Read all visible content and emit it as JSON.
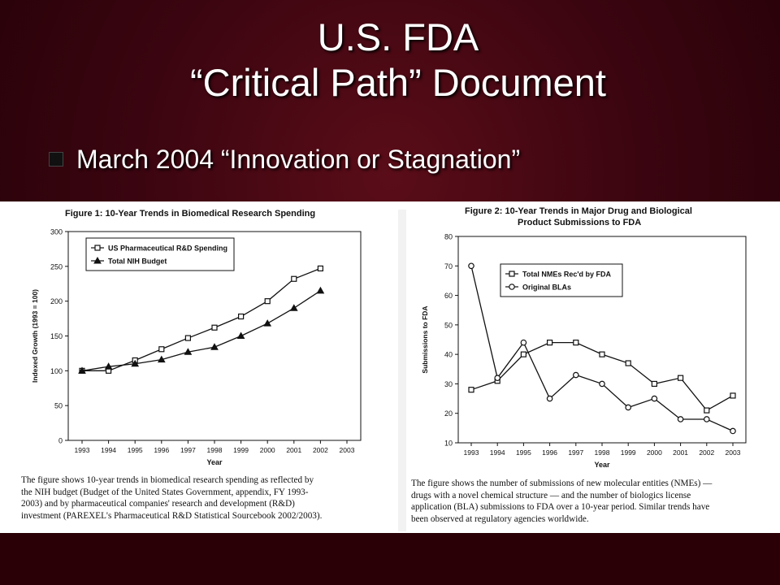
{
  "slide": {
    "title_line1": "U.S. FDA",
    "title_line2": "“Critical Path” Document",
    "subtitle": "March 2004 “Innovation or Stagnation”"
  },
  "figure1": {
    "title": "Figure 1:  10-Year Trends in Biomedical Research Spending",
    "caption": [
      "The figure shows 10-year trends in biomedical research spending as reflected by",
      "the NIH budget (Budget of the United States Government, appendix, FY 1993-",
      "2003) and by pharmaceutical companies' research and development (R&D)",
      "investment (PAREXEL's Pharmaceutical R&D Statistical Sourcebook 2002/2003)."
    ]
  },
  "figure2": {
    "title_line1": "Figure 2:  10-Year Trends in Major Drug and Biological",
    "title_line2": "Product Submissions to FDA",
    "caption": [
      "The figure shows the number of submissions of new molecular entities (NMEs) —",
      "drugs with a novel chemical structure — and the number of biologics license",
      "application (BLA) submissions to FDA over a 10-year period.  Similar trends have",
      "been observed at regulatory agencies worldwide."
    ]
  },
  "chart_data": [
    {
      "type": "line",
      "title": "Figure 1:  10-Year Trends in Biomedical Research Spending",
      "xlabel": "Year",
      "ylabel": "Indexed Growth (1993 = 100)",
      "categories": [
        "1993",
        "1994",
        "1995",
        "1996",
        "1997",
        "1998",
        "1999",
        "2000",
        "2001",
        "2002",
        "2003"
      ],
      "yticks": [
        0,
        50,
        100,
        150,
        200,
        250,
        300
      ],
      "ylim": [
        0,
        300
      ],
      "grid": false,
      "legend": "top-left",
      "series": [
        {
          "name": "US Pharmaceutical R&D Spending",
          "marker": "square",
          "values": [
            100,
            100,
            115,
            131,
            147,
            162,
            178,
            200,
            232,
            247,
            null
          ]
        },
        {
          "name": "Total NIH Budget",
          "marker": "triangle",
          "values": [
            100,
            106,
            110,
            116,
            127,
            134,
            150,
            168,
            190,
            215,
            null
          ]
        }
      ]
    },
    {
      "type": "line",
      "title": "Figure 2:  10-Year Trends in Major Drug and Biological Product Submissions to FDA",
      "xlabel": "Year",
      "ylabel": "Submissions to FDA",
      "categories": [
        "1993",
        "1994",
        "1995",
        "1996",
        "1997",
        "1998",
        "1999",
        "2000",
        "2001",
        "2002",
        "2003"
      ],
      "yticks": [
        10,
        20,
        30,
        40,
        50,
        60,
        70,
        80
      ],
      "ylim": [
        10,
        80
      ],
      "grid": false,
      "legend": "top-left",
      "series": [
        {
          "name": "Total NMEs Rec'd by FDA",
          "marker": "square",
          "values": [
            28,
            31,
            40,
            44,
            44,
            40,
            37,
            30,
            32,
            21,
            26
          ]
        },
        {
          "name": "Original BLAs",
          "marker": "circle",
          "values": [
            70,
            32,
            44,
            25,
            33,
            30,
            22,
            25,
            18,
            18,
            14
          ]
        }
      ]
    }
  ]
}
